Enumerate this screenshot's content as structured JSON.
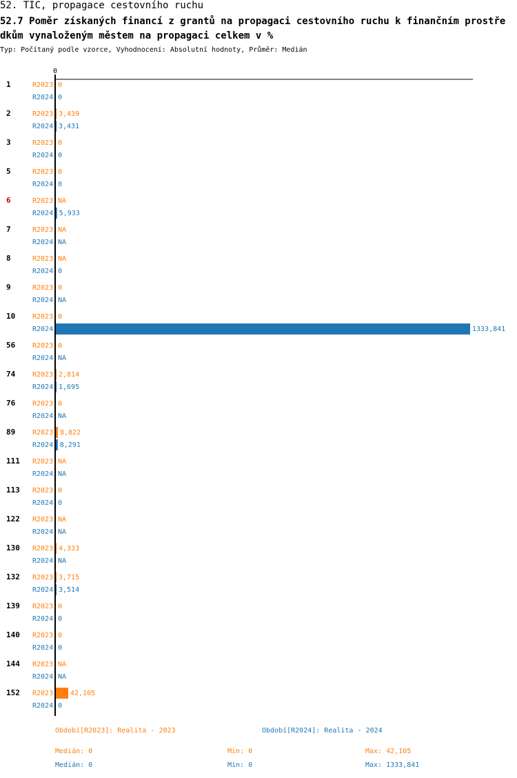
{
  "header": {
    "title": "52. TIC, propagace cestovního ruchu",
    "subtitle": "52.7 Poměr získaných financí z grantů na propagaci cestovního ruchu k finančním prostředkům vynaloženým městem na propagaci celkem v %",
    "type_line": "Typ: Počítaný podle vzorce, Vyhodnocení: Absolutní hodnoty, Průměr: Medián"
  },
  "colors": {
    "r2023": "#ff7f0e",
    "r2024": "#1f77b4",
    "highlight": "#cc0000"
  },
  "chart_data": {
    "type": "bar",
    "orientation": "horizontal",
    "axis_label": "0",
    "highlighted_category": "6",
    "categories": [
      "1",
      "2",
      "3",
      "5",
      "6",
      "7",
      "8",
      "9",
      "10",
      "56",
      "74",
      "76",
      "89",
      "111",
      "113",
      "122",
      "130",
      "132",
      "139",
      "140",
      "144",
      "152"
    ],
    "series": [
      {
        "name": "R2023",
        "values": [
          0,
          3.439,
          0,
          0,
          null,
          null,
          null,
          0,
          0,
          0,
          2.814,
          0,
          8.822,
          null,
          0,
          null,
          4.333,
          3.715,
          0,
          0,
          null,
          42.105
        ],
        "labels": [
          "0",
          "3,439",
          "0",
          "0",
          "NA",
          "NA",
          "NA",
          "0",
          "0",
          "0",
          "2,814",
          "0",
          "8,822",
          "NA",
          "0",
          "NA",
          "4,333",
          "3,715",
          "0",
          "0",
          "NA",
          "42,105"
        ]
      },
      {
        "name": "R2024",
        "values": [
          0,
          3.431,
          0,
          0,
          5.933,
          null,
          0,
          null,
          1333.841,
          null,
          1.695,
          null,
          8.291,
          null,
          0,
          null,
          null,
          3.514,
          0,
          0,
          null,
          0
        ],
        "labels": [
          "0",
          "3,431",
          "0",
          "0",
          "5,933",
          "NA",
          "0",
          "NA",
          "",
          "NA",
          "1,695",
          "NA",
          "8,291",
          "NA",
          "0",
          "NA",
          "NA",
          "3,514",
          "0",
          "0",
          "NA",
          "0"
        ]
      }
    ],
    "max_value_label": "1333,841",
    "xlim": [
      0,
      1333.841
    ]
  },
  "legend": {
    "r2023": "Období[R2023]: Realita - 2023",
    "r2024": "Období[R2024]: Realita - 2024"
  },
  "stats": {
    "r2023": {
      "median": "Medián: 0",
      "min": "Min: 0",
      "max": "Max: 42,105"
    },
    "r2024": {
      "median": "Medián: 0",
      "min": "Min: 0",
      "max": "Max: 1333,841"
    }
  }
}
